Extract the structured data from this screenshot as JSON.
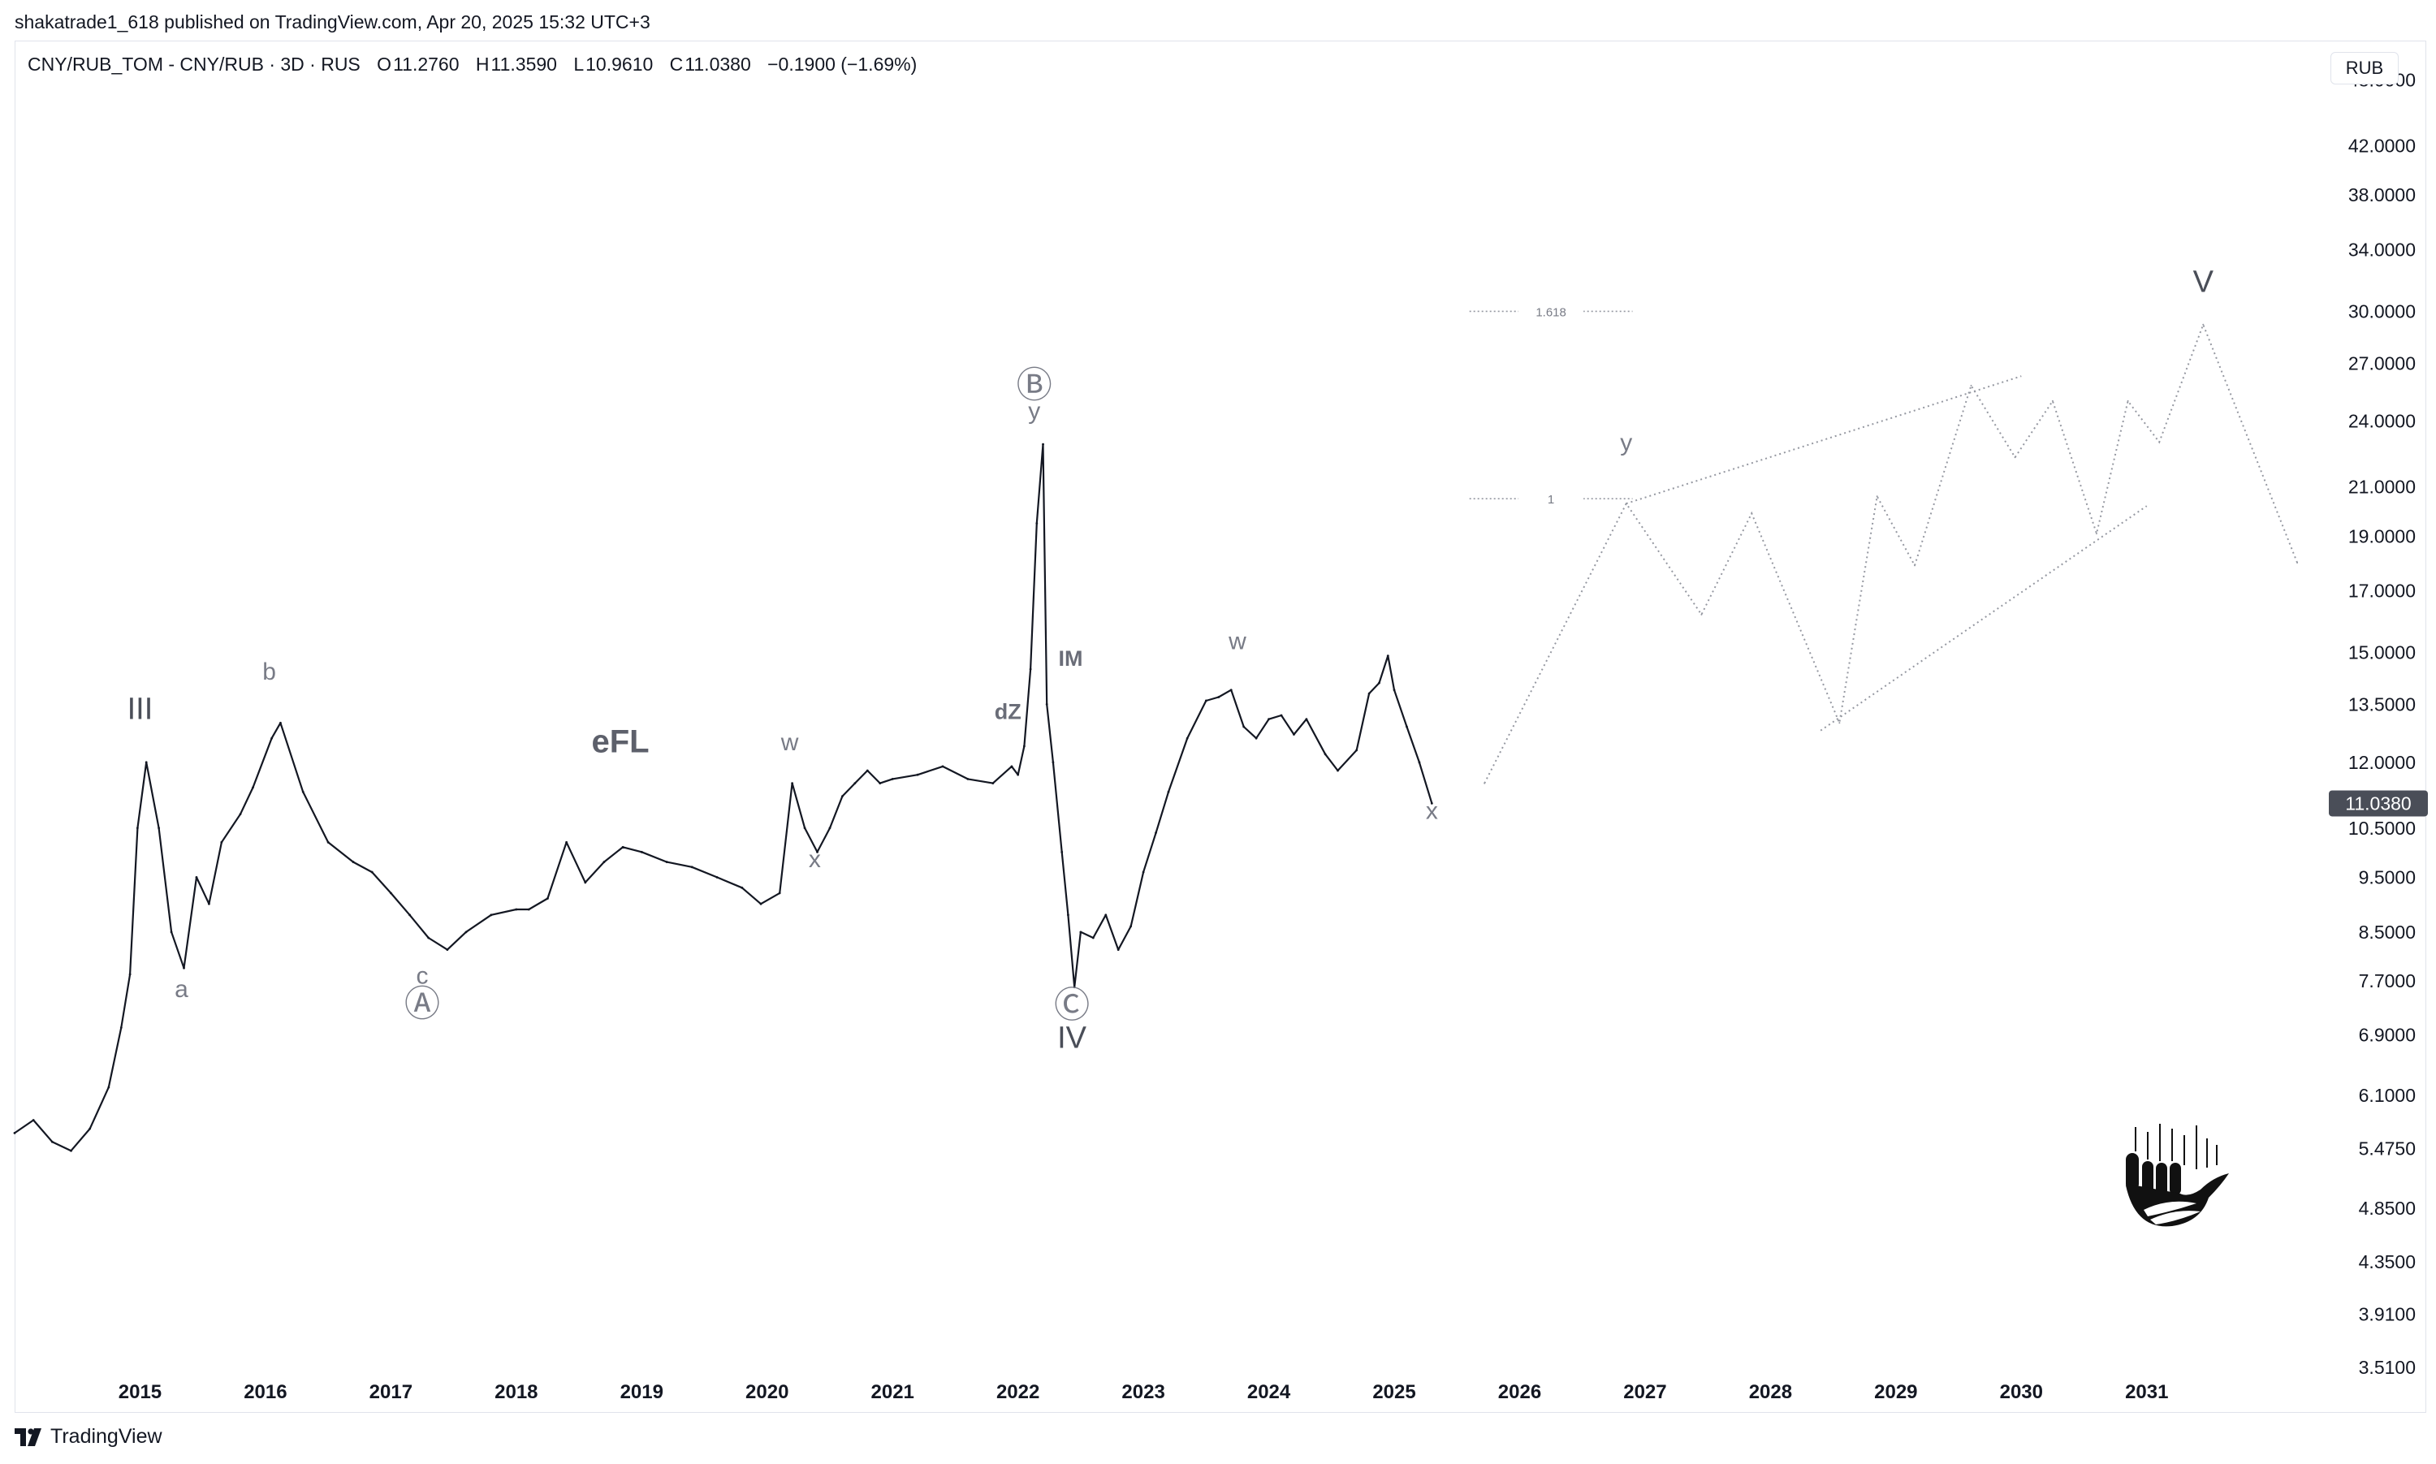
{
  "header": {
    "publish_line": "shakatrade1_618 published on TradingView.com, Apr 20, 2025 15:32 UTC+3"
  },
  "legend": {
    "symbol": "CNY/RUB_TOM - CNY/RUB · 3D · RUS",
    "open_label": "O",
    "open": "11.2760",
    "high_label": "H",
    "high": "11.3590",
    "low_label": "L",
    "low": "10.9610",
    "close_label": "C",
    "close": "11.0380",
    "change": "−0.1900 (−1.69%)"
  },
  "currency_button": "RUB",
  "footer": {
    "brand": "TradingView"
  },
  "colors": {
    "price_line": "#131722",
    "axis_text": "#131722",
    "label_gray": "#787b86",
    "projection": "#9598a1",
    "price_tag_bg": "#4a4e58",
    "border": "#e0e3eb"
  },
  "chart_data": {
    "type": "line",
    "scale": "log",
    "grid": false,
    "price_scale_side": "right",
    "ylim": [
      3.2,
      52
    ],
    "x_range": [
      2014.0,
      2032.4
    ],
    "x_ticks": [
      "2015",
      "2016",
      "2017",
      "2018",
      "2019",
      "2020",
      "2021",
      "2022",
      "2023",
      "2024",
      "2025",
      "2026",
      "2027",
      "2028",
      "2029",
      "2030",
      "2031"
    ],
    "y_ticks": [
      "48.0000",
      "42.0000",
      "38.0000",
      "34.0000",
      "30.0000",
      "27.0000",
      "24.0000",
      "21.0000",
      "19.0000",
      "17.0000",
      "15.0000",
      "13.5000",
      "12.0000",
      "10.5000",
      "9.5000",
      "8.5000",
      "7.7000",
      "6.9000",
      "6.1000",
      "5.4750",
      "4.8500",
      "4.3500",
      "3.9100",
      "3.5100"
    ],
    "last_price": "11.0380",
    "series": [
      {
        "x": [
          2014.0,
          2014.15,
          2014.3,
          2014.45,
          2014.6,
          2014.75,
          2014.85,
          2014.92,
          2014.98,
          2015.05,
          2015.15,
          2015.25,
          2015.35,
          2015.45,
          2015.55,
          2015.65,
          2015.8,
          2015.9,
          2016.05,
          2016.12,
          2016.3,
          2016.5,
          2016.7,
          2016.85,
          2017.0,
          2017.15,
          2017.3,
          2017.45,
          2017.6,
          2017.8,
          2018.0,
          2018.1,
          2018.25,
          2018.4,
          2018.55,
          2018.7,
          2018.85,
          2019.0,
          2019.2,
          2019.4,
          2019.6,
          2019.8,
          2019.95,
          2020.1,
          2020.2,
          2020.3,
          2020.4,
          2020.5,
          2020.6,
          2020.7,
          2020.8,
          2020.9,
          2021.0,
          2021.2,
          2021.4,
          2021.6,
          2021.8,
          2021.95,
          2022.0,
          2022.05,
          2022.1,
          2022.15,
          2022.2,
          2022.23,
          2022.28,
          2022.35,
          2022.4,
          2022.45,
          2022.5,
          2022.6,
          2022.7,
          2022.8,
          2022.9,
          2023.0,
          2023.1,
          2023.2,
          2023.35,
          2023.5,
          2023.6,
          2023.7,
          2023.8,
          2023.9,
          2024.0,
          2024.1,
          2024.2,
          2024.3,
          2024.45,
          2024.55,
          2024.7,
          2024.8,
          2024.88,
          2024.95,
          2025.0,
          2025.1,
          2025.2,
          2025.3
        ],
        "y": [
          5.65,
          5.8,
          5.55,
          5.45,
          5.7,
          6.2,
          7.0,
          7.8,
          10.5,
          12.0,
          10.5,
          8.5,
          7.9,
          9.5,
          9.0,
          10.2,
          10.8,
          11.4,
          12.6,
          13.0,
          11.3,
          10.2,
          9.8,
          9.6,
          9.2,
          8.8,
          8.4,
          8.2,
          8.5,
          8.8,
          8.9,
          8.9,
          9.1,
          10.2,
          9.4,
          9.8,
          10.1,
          10.0,
          9.8,
          9.7,
          9.5,
          9.3,
          9.0,
          9.2,
          11.5,
          10.5,
          10.0,
          10.5,
          11.2,
          11.5,
          11.8,
          11.5,
          11.6,
          11.7,
          11.9,
          11.6,
          11.5,
          11.9,
          11.7,
          12.4,
          14.5,
          19.5,
          22.9,
          13.5,
          12.0,
          10.0,
          8.8,
          7.6,
          8.5,
          8.4,
          8.8,
          8.2,
          8.6,
          9.6,
          10.4,
          11.3,
          12.6,
          13.6,
          13.7,
          13.9,
          12.9,
          12.6,
          13.1,
          13.2,
          12.7,
          13.1,
          12.2,
          11.8,
          12.3,
          13.8,
          14.1,
          14.9,
          13.9,
          12.9,
          12.0,
          11.04
        ]
      }
    ],
    "projection": {
      "x": [
        2025.72,
        2026.85,
        2027.45,
        2027.85,
        2028.55,
        2028.85,
        2029.15,
        2029.6,
        2029.95,
        2030.25,
        2030.6,
        2030.85,
        2031.1,
        2031.45,
        2032.2
      ],
      "y": [
        11.5,
        20.3,
        16.2,
        19.9,
        13.0,
        20.6,
        17.9,
        25.8,
        22.3,
        25.0,
        19.1,
        25.0,
        23.0,
        29.2,
        18.0
      ]
    },
    "channel_lines": [
      {
        "x": [
          2026.85,
          2030.0
        ],
        "y": [
          20.3,
          26.3
        ]
      },
      {
        "x": [
          2028.4,
          2031.0
        ],
        "y": [
          12.8,
          20.2
        ]
      }
    ],
    "fib_levels": [
      {
        "label": "1.618",
        "y": 30.0,
        "x": [
          2025.6,
          2026.9
        ]
      },
      {
        "label": "1",
        "y": 20.5,
        "x": [
          2025.6,
          2026.9
        ]
      }
    ],
    "annotations": [
      {
        "text": "III",
        "x": 2015.0,
        "y": 13.1,
        "style": "wave-large"
      },
      {
        "text": "b",
        "x": 2016.03,
        "y": 14.2,
        "style": "wave-small"
      },
      {
        "text": "a",
        "x": 2015.33,
        "y": 7.45,
        "style": "wave-small"
      },
      {
        "text": "c",
        "x": 2017.25,
        "y": 7.65,
        "style": "wave-small"
      },
      {
        "text": "Ⓐ",
        "x": 2017.25,
        "y": 7.17,
        "style": "wave-circle"
      },
      {
        "text": "eFL",
        "x": 2018.83,
        "y": 12.25,
        "style": "bold-large"
      },
      {
        "text": "w",
        "x": 2020.18,
        "y": 12.3,
        "style": "wave-small"
      },
      {
        "text": "x",
        "x": 2020.38,
        "y": 9.7,
        "style": "wave-small"
      },
      {
        "text": "dZ",
        "x": 2021.92,
        "y": 13.1,
        "style": "bold-small"
      },
      {
        "text": "Ⓑ",
        "x": 2022.13,
        "y": 25.2,
        "style": "wave-circle"
      },
      {
        "text": "y",
        "x": 2022.13,
        "y": 24.1,
        "style": "wave-small"
      },
      {
        "text": "IM",
        "x": 2022.42,
        "y": 14.6,
        "style": "bold-small"
      },
      {
        "text": "Ⓒ",
        "x": 2022.43,
        "y": 7.15,
        "style": "wave-circle"
      },
      {
        "text": "IV",
        "x": 2022.43,
        "y": 6.72,
        "style": "wave-large"
      },
      {
        "text": "w",
        "x": 2023.75,
        "y": 15.1,
        "style": "wave-small"
      },
      {
        "text": "x",
        "x": 2025.3,
        "y": 10.7,
        "style": "wave-small"
      },
      {
        "text": "y",
        "x": 2026.85,
        "y": 22.6,
        "style": "wave-small"
      },
      {
        "text": "V",
        "x": 2031.45,
        "y": 31.2,
        "style": "wave-large"
      }
    ]
  }
}
